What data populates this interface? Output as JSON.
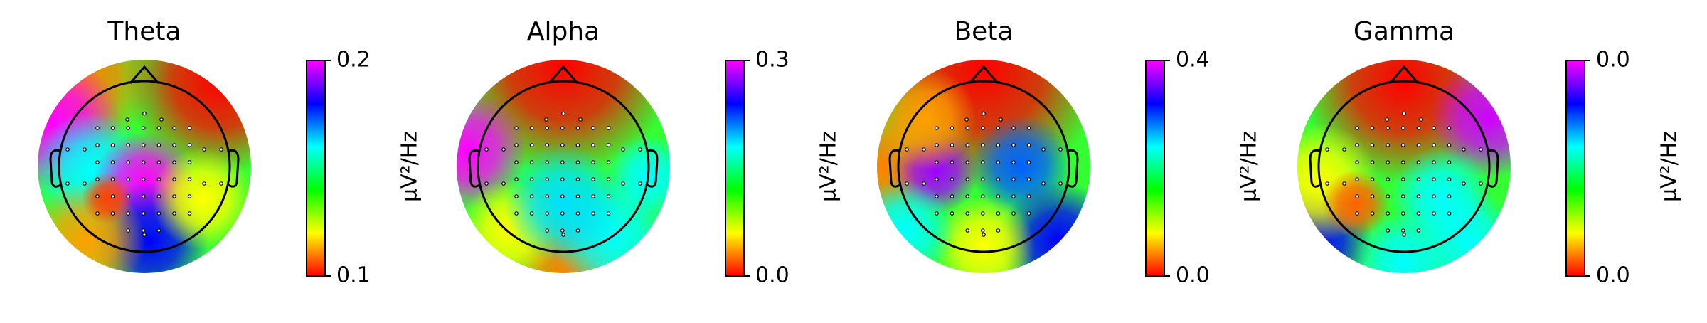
{
  "chart_data": [
    {
      "type": "topomap",
      "title": "Theta",
      "colorbar_label": "µV²/Hz",
      "clim": [
        0.1,
        0.2
      ],
      "cticks": [
        0.1,
        0.2
      ],
      "colormap": [
        "#ff0000",
        "#ffff00",
        "#00ff00",
        "#00ffff",
        "#0000ff",
        "#ff00ff"
      ]
    },
    {
      "type": "topomap",
      "title": "Alpha",
      "colorbar_label": "µV²/Hz",
      "clim": [
        0,
        0.3
      ],
      "cticks": [
        {
          "value": 0,
          "label": "0.0"
        },
        0.3
      ],
      "colormap": [
        "#ff0000",
        "#ffff00",
        "#00ff00",
        "#00ffff",
        "#0000ff",
        "#ff00ff"
      ]
    },
    {
      "type": "topomap",
      "title": "Beta",
      "colorbar_label": "µV²/Hz",
      "clim": [
        0,
        0.4
      ],
      "cticks": [
        {
          "value": 0,
          "label": "0.0"
        },
        0.4
      ],
      "colormap": [
        "#ff0000",
        "#ffff00",
        "#00ff00",
        "#00ffff",
        "#0000ff",
        "#ff00ff"
      ]
    },
    {
      "type": "topomap",
      "title": "Gamma",
      "colorbar_label": "µV²/Hz",
      "clim": [
        0,
        0.02
      ],
      "cticks": [
        {
          "value": 0,
          "label": "0.0"
        },
        {
          "value": 0.02,
          "label": "0.0"
        }
      ],
      "colormap": [
        "#ff0000",
        "#ffff00",
        "#00ff00",
        "#00ffff",
        "#0000ff",
        "#ff00ff"
      ]
    }
  ]
}
